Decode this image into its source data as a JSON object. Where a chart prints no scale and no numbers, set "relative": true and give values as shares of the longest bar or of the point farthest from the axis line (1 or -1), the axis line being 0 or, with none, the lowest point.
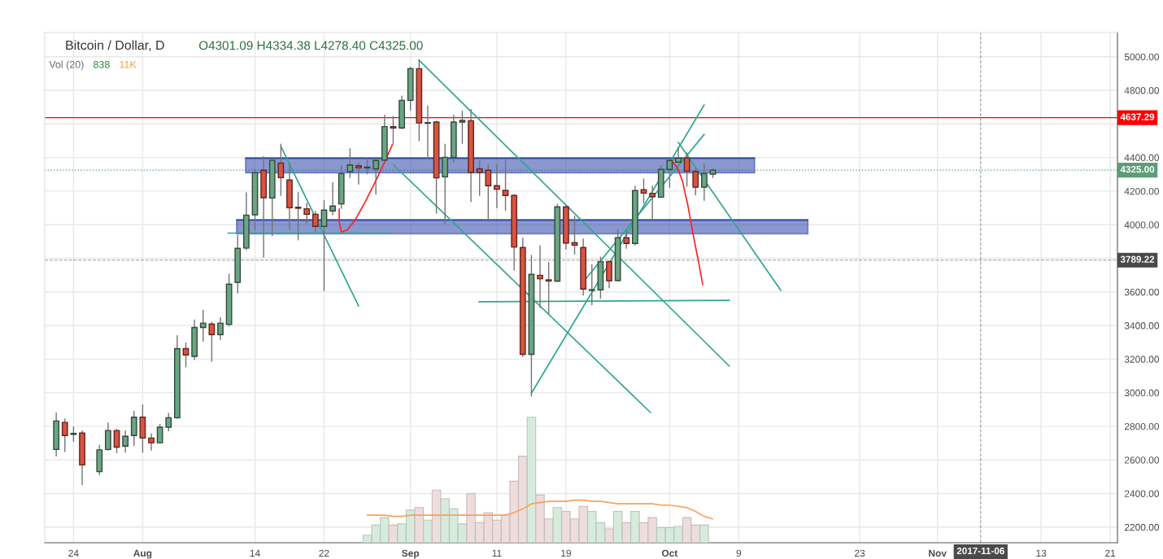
{
  "chart_data": [
    {
      "type": "candlestick",
      "title": "Bitcoin / Dollar, D",
      "subtitle": "O4301.09 H4334.38 L4278.40 C4325.00",
      "x": [
        "2017-07-22",
        "2017-07-23",
        "2017-07-24",
        "2017-07-25",
        "2017-07-27",
        "2017-07-28",
        "2017-07-29",
        "2017-07-30",
        "2017-07-31",
        "2017-08-01",
        "2017-08-02",
        "2017-08-03",
        "2017-08-04",
        "2017-08-05",
        "2017-08-06",
        "2017-08-07",
        "2017-08-08",
        "2017-08-09",
        "2017-08-10",
        "2017-08-11",
        "2017-08-12",
        "2017-08-13",
        "2017-08-14",
        "2017-08-15",
        "2017-08-16",
        "2017-08-17",
        "2017-08-18",
        "2017-08-19",
        "2017-08-20",
        "2017-08-21",
        "2017-08-22",
        "2017-08-23",
        "2017-08-24",
        "2017-08-25",
        "2017-08-26",
        "2017-08-27",
        "2017-08-28",
        "2017-08-29",
        "2017-08-30",
        "2017-08-31",
        "2017-09-01",
        "2017-09-02",
        "2017-09-03",
        "2017-09-04",
        "2017-09-05",
        "2017-09-06",
        "2017-09-07",
        "2017-09-08",
        "2017-09-09",
        "2017-09-10",
        "2017-09-11",
        "2017-09-12",
        "2017-09-13",
        "2017-09-14",
        "2017-09-15",
        "2017-09-16",
        "2017-09-17",
        "2017-09-18",
        "2017-09-19",
        "2017-09-20",
        "2017-09-21",
        "2017-09-22",
        "2017-09-23",
        "2017-09-24",
        "2017-09-25",
        "2017-09-26",
        "2017-09-27",
        "2017-09-28",
        "2017-09-29",
        "2017-09-30",
        "2017-10-01",
        "2017-10-02",
        "2017-10-03",
        "2017-10-04",
        "2017-10-05",
        "2017-10-06"
      ],
      "ohlc": [
        [
          2662,
          2882,
          2620,
          2832
        ],
        [
          2823,
          2847,
          2647,
          2745
        ],
        [
          2752,
          2799,
          2708,
          2758
        ],
        [
          2760,
          2775,
          2450,
          2570
        ],
        [
          2530,
          2690,
          2510,
          2660
        ],
        [
          2662,
          2823,
          2656,
          2775
        ],
        [
          2775,
          2786,
          2641,
          2676
        ],
        [
          2682,
          2775,
          2643,
          2740
        ],
        [
          2745,
          2892,
          2682,
          2854
        ],
        [
          2854,
          2930,
          2643,
          2730
        ],
        [
          2730,
          2758,
          2656,
          2702
        ],
        [
          2702,
          2814,
          2697,
          2795
        ],
        [
          2795,
          2879,
          2771,
          2851
        ],
        [
          2851,
          3342,
          2845,
          3262
        ],
        [
          3262,
          3299,
          3151,
          3225
        ],
        [
          3216,
          3435,
          3194,
          3388
        ],
        [
          3388,
          3494,
          3305,
          3414
        ],
        [
          3409,
          3423,
          3184,
          3346
        ],
        [
          3346,
          3449,
          3314,
          3414
        ],
        [
          3407,
          3709,
          3394,
          3646
        ],
        [
          3657,
          3939,
          3592,
          3859
        ],
        [
          3861,
          4194,
          3848,
          4057
        ],
        [
          4059,
          4333,
          3968,
          4309
        ],
        [
          4324,
          4408,
          3805,
          4161
        ],
        [
          4159,
          4404,
          3933,
          4383
        ],
        [
          4367,
          4482,
          4172,
          4280
        ],
        [
          4266,
          4369,
          3969,
          4101
        ],
        [
          4104,
          4195,
          3907,
          4098
        ],
        [
          4095,
          4130,
          4006,
          4062
        ],
        [
          4062,
          4082,
          3954,
          3990
        ],
        [
          3990,
          4146,
          3605,
          4087
        ],
        [
          4082,
          4253,
          4057,
          4111
        ],
        [
          4124,
          4353,
          4095,
          4304
        ],
        [
          4316,
          4455,
          4279,
          4356
        ],
        [
          4351,
          4372,
          4240,
          4338
        ],
        [
          4338,
          4396,
          4301,
          4343
        ],
        [
          4333,
          4404,
          4179,
          4382
        ],
        [
          4385,
          4655,
          4380,
          4584
        ],
        [
          4584,
          4648,
          4482,
          4576
        ],
        [
          4576,
          4769,
          4570,
          4740
        ],
        [
          4740,
          4939,
          4679,
          4929
        ],
        [
          4929,
          4986,
          4498,
          4606
        ],
        [
          4604,
          4708,
          4390,
          4608
        ],
        [
          4611,
          4619,
          4066,
          4279
        ],
        [
          4285,
          4482,
          4006,
          4401
        ],
        [
          4401,
          4655,
          4369,
          4611
        ],
        [
          4611,
          4679,
          4482,
          4621
        ],
        [
          4619,
          4689,
          4135,
          4312
        ],
        [
          4333,
          4385,
          4172,
          4312
        ],
        [
          4324,
          4359,
          4019,
          4232
        ],
        [
          4232,
          4359,
          4099,
          4211
        ],
        [
          4204,
          4385,
          4083,
          4174
        ],
        [
          4174,
          4183,
          3727,
          3867
        ],
        [
          3864,
          3922,
          3212,
          3228
        ],
        [
          3228,
          3820,
          2977,
          3704
        ],
        [
          3699,
          3877,
          3505,
          3678
        ],
        [
          3672,
          3777,
          3468,
          3665
        ],
        [
          3664,
          4124,
          3660,
          4106
        ],
        [
          4106,
          4114,
          3852,
          3891
        ],
        [
          3893,
          4054,
          3823,
          3878
        ],
        [
          3864,
          3917,
          3578,
          3617
        ],
        [
          3609,
          3764,
          3521,
          3613
        ],
        [
          3612,
          3810,
          3559,
          3780
        ],
        [
          3780,
          3788,
          3622,
          3667
        ],
        [
          3668,
          3973,
          3662,
          3922
        ],
        [
          3922,
          3970,
          3857,
          3888
        ],
        [
          3888,
          4232,
          3877,
          4203
        ],
        [
          4208,
          4275,
          4127,
          4188
        ],
        [
          4187,
          4232,
          4027,
          4167
        ],
        [
          4164,
          4353,
          4160,
          4329
        ],
        [
          4329,
          4385,
          4220,
          4382
        ],
        [
          4372,
          4463,
          4368,
          4396
        ],
        [
          4396,
          4430,
          4227,
          4319
        ],
        [
          4317,
          4337,
          4175,
          4224
        ],
        [
          4224,
          4364,
          4143,
          4304
        ],
        [
          4301.09,
          4334.38,
          4278.4,
          4325.0
        ]
      ],
      "colors": [
        "#6ba583",
        "#d75442",
        "#6ba583",
        "#d75442",
        "#6ba583",
        "#6ba583",
        "#d75442",
        "#6ba583",
        "#6ba583",
        "#d75442",
        "#d75442",
        "#6ba583",
        "#6ba583",
        "#6ba583",
        "#d75442",
        "#6ba583",
        "#6ba583",
        "#d75442",
        "#6ba583",
        "#6ba583",
        "#6ba583",
        "#6ba583",
        "#6ba583",
        "#d75442",
        "#6ba583",
        "#d75442",
        "#d75442",
        "#d75442",
        "#d75442",
        "#d75442",
        "#6ba583",
        "#6ba583",
        "#6ba583",
        "#6ba583",
        "#d75442",
        "#6ba583",
        "#6ba583",
        "#6ba583",
        "#d75442",
        "#6ba583",
        "#6ba583",
        "#d75442",
        "#6ba583",
        "#d75442",
        "#6ba583",
        "#6ba583",
        "#6ba583",
        "#d75442",
        "#d75442",
        "#d75442",
        "#d75442",
        "#d75442",
        "#d75442",
        "#d75442",
        "#6ba583",
        "#d75442",
        "#d75442",
        "#6ba583",
        "#d75442",
        "#d75442",
        "#d75442",
        "#6ba583",
        "#6ba583",
        "#d75442",
        "#6ba583",
        "#d75442",
        "#6ba583",
        "#d75442",
        "#d75442",
        "#6ba583",
        "#6ba583",
        "#6ba583",
        "#d75442",
        "#d75442",
        "#6ba583",
        "#6ba583"
      ],
      "series": [
        {
          "type": "line",
          "x": [
            "2017-08-12T22:00",
            "2017-08-20T12:00",
            "2017-08-31T12:00",
            "2017-09-10T12:00",
            "2017-09-20T12:00",
            "2017-09-30T12:00",
            "2017-10-10T20:00"
          ],
          "values": [
            4396,
            4396,
            4396,
            4396,
            4396,
            4396,
            4396
          ],
          "lower": [
            4309,
            4309,
            4309,
            4309,
            4309,
            4309,
            4309
          ],
          "upper": [
            4396,
            4396,
            4396,
            4396,
            4396,
            4396,
            4396
          ],
          "color": "#2a44a8"
        },
        {
          "type": "line",
          "x": [
            "2017-08-11T21:00",
            "2017-08-20T12:00",
            "2017-08-31T12:00",
            "2017-09-10T12:00",
            "2017-09-20T12:00",
            "2017-09-30T12:00",
            "2017-10-08T12:00",
            "2017-10-17T00:00"
          ],
          "values": [
            4028,
            4028,
            4028,
            4028,
            4028,
            4028,
            4028,
            4028
          ],
          "lower": [
            3946,
            3946,
            3946,
            3946,
            3946,
            3946,
            3946,
            3946
          ],
          "upper": [
            4028,
            4028,
            4028,
            4028,
            4028,
            4028,
            4028,
            4028
          ],
          "color": "#2a44a8"
        },
        {
          "type": "line",
          "x": [
            "2017-08-17",
            "2017-08-26"
          ],
          "values": [
            4466,
            3516
          ],
          "color": "#2fa58f"
        },
        {
          "type": "line",
          "x": [
            "2017-09-02",
            "2017-10-07T22:00"
          ],
          "values": [
            4979,
            3158
          ],
          "color": "#2fa58f"
        },
        {
          "type": "line",
          "x": [
            "2017-08-30",
            "2017-09-28T19:00"
          ],
          "values": [
            4358,
            2882
          ],
          "color": "#2fa58f"
        },
        {
          "type": "line",
          "x": [
            "2017-09-15",
            "2017-10-05"
          ],
          "values": [
            2997,
            4713
          ],
          "color": "#2fa58f"
        },
        {
          "type": "line",
          "x": [
            "2017-09-21T06:00",
            "2017-10-05"
          ],
          "values": [
            3675,
            4538
          ],
          "color": "#2fa58f"
        },
        {
          "type": "line",
          "x": [
            "2017-10-02",
            "2017-10-13T21:00"
          ],
          "values": [
            4490,
            3609
          ],
          "color": "#2fa58f"
        },
        {
          "type": "line",
          "x": [
            "2017-08-10T21:00",
            "2017-08-29T22:00"
          ],
          "values": [
            3950,
            3950
          ],
          "color": "#2fa58f"
        },
        {
          "type": "line",
          "x": [
            "2017-09-08T22:00",
            "2017-10-07T22:00"
          ],
          "values": [
            3541,
            3550
          ],
          "color": "#2fa58f"
        },
        {
          "type": "line",
          "x": [
            "2017-08-23T18:00",
            "2017-08-23T18:00",
            "2017-08-24T00:00",
            "2017-08-24T16:00",
            "2017-08-25T14:00",
            "2017-08-26T20:00",
            "2017-08-28T02:00",
            "2017-08-29T01:00",
            "2017-08-29T22:00"
          ],
          "values": [
            4094,
            4014,
            3957,
            3968,
            4027,
            4143,
            4272,
            4377,
            4479
          ],
          "color": "#ff2222"
        },
        {
          "type": "line",
          "x": [
            "2017-10-01T06:00",
            "2017-10-01T22:00",
            "2017-10-02T12:00",
            "2017-10-03T03:00",
            "2017-10-03T18:00",
            "2017-10-04T09:00",
            "2017-10-04T20:00"
          ],
          "values": [
            4380,
            4337,
            4256,
            4111,
            3933,
            3772,
            3643
          ],
          "color": "#ff2222"
        }
      ],
      "ref_lines": [
        {
          "axis": "y",
          "value": 4637.29,
          "label": "4637.29",
          "color": "#ff0000",
          "line_style": "solid"
        },
        {
          "axis": "y",
          "value": 4325.0,
          "label": "4325.00",
          "color": "#5d9d77",
          "line_style": "dotted"
        },
        {
          "axis": "y",
          "value": 3789.22,
          "label": "3789.22",
          "color": "#4a4a4a",
          "line_style": "dashed"
        },
        {
          "axis": "x",
          "value": "2017-11-06",
          "label": "2017-11-06",
          "color": "#4a4a4a",
          "line_style": "dashed"
        }
      ],
      "xlim": [
        "2017-07-20T16:00",
        "2017-11-21T20:00"
      ],
      "xticks": [
        {
          "value": "2017-07-24",
          "label": "24"
        },
        {
          "value": "2017-08-01",
          "label": "Aug"
        },
        {
          "value": "2017-08-14",
          "label": "14"
        },
        {
          "value": "2017-08-22",
          "label": "22"
        },
        {
          "value": "2017-09-01",
          "label": "Sep"
        },
        {
          "value": "2017-09-11",
          "label": "11"
        },
        {
          "value": "2017-09-19",
          "label": "19"
        },
        {
          "value": "2017-10-01",
          "label": "Oct"
        },
        {
          "value": "2017-10-09",
          "label": "9"
        },
        {
          "value": "2017-10-23",
          "label": "23"
        },
        {
          "value": "2017-11-01",
          "label": "Nov"
        },
        {
          "value": "2017-11-13",
          "label": "13"
        },
        {
          "value": "2017-11-21",
          "label": "21"
        }
      ],
      "ylim": [
        2107,
        5144
      ],
      "yticks": [
        {
          "value": 2200,
          "label": "2200.00"
        },
        {
          "value": 2400,
          "label": "2400.00"
        },
        {
          "value": 2600,
          "label": "2600.00"
        },
        {
          "value": 2800,
          "label": "2800.00"
        },
        {
          "value": 3000,
          "label": "3000.00"
        },
        {
          "value": 3200,
          "label": "3200.00"
        },
        {
          "value": 3400,
          "label": "3400.00"
        },
        {
          "value": 3600,
          "label": "3600.00"
        },
        {
          "value": 3800,
          "label": null
        },
        {
          "value": 4000,
          "label": "4000.00"
        },
        {
          "value": 4200,
          "label": "4200.00"
        },
        {
          "value": 4400,
          "label": "4400.00"
        },
        {
          "value": 4600,
          "label": null
        },
        {
          "value": 4800,
          "label": "4800.00"
        },
        {
          "value": 5000,
          "label": "5000.00"
        }
      ],
      "grid": true
    },
    {
      "type": "bar",
      "relative": true,
      "annotations": [
        "Vol (20)",
        "838",
        "11K"
      ],
      "xlim": [
        "2017-07-20T16:00",
        "2017-11-21T20:00"
      ],
      "x": [
        "2017-08-27",
        "2017-08-28",
        "2017-08-29",
        "2017-08-30",
        "2017-08-31",
        "2017-09-01",
        "2017-09-02",
        "2017-09-03",
        "2017-09-04",
        "2017-09-05",
        "2017-09-06",
        "2017-09-07",
        "2017-09-08",
        "2017-09-09",
        "2017-09-10",
        "2017-09-11",
        "2017-09-12",
        "2017-09-13",
        "2017-09-14",
        "2017-09-15",
        "2017-09-16",
        "2017-09-17",
        "2017-09-18",
        "2017-09-19",
        "2017-09-20",
        "2017-09-21",
        "2017-09-22",
        "2017-09-23",
        "2017-09-24",
        "2017-09-25",
        "2017-09-26",
        "2017-09-27",
        "2017-09-28",
        "2017-09-29",
        "2017-09-30",
        "2017-10-01",
        "2017-10-02",
        "2017-10-03",
        "2017-10-04",
        "2017-10-05",
        "2017-10-06"
      ],
      "series": [
        {
          "type": "bar",
          "values": [
            0.06,
            0.14,
            0.2,
            0.14,
            0.15,
            0.26,
            0.28,
            0.18,
            0.42,
            0.35,
            0.27,
            0.15,
            0.39,
            0.16,
            0.24,
            0.18,
            0.22,
            0.49,
            0.69,
            1,
            0.38,
            0.19,
            0.28,
            0.25,
            0.19,
            0.29,
            0.25,
            0.16,
            0.11,
            0.25,
            0.16,
            0.25,
            0.16,
            0.2,
            0.12,
            0.12,
            0.13,
            0.2,
            0.14,
            0.14,
            null
          ],
          "colors": [
            "#d6ebdc",
            "#d6ebdc",
            "#d6ebdc",
            "#eedddd",
            "#d6ebdc",
            "#d6ebdc",
            "#eedddd",
            "#d6ebdc",
            "#eedddd",
            "#d6ebdc",
            "#d6ebdc",
            "#d6ebdc",
            "#eedddd",
            "#eedddd",
            "#eedddd",
            "#eedddd",
            "#eedddd",
            "#eedddd",
            "#eedddd",
            "#d6ebdc",
            "#eedddd",
            "#eedddd",
            "#d6ebdc",
            "#eedddd",
            "#eedddd",
            "#eedddd",
            "#d6ebdc",
            "#d6ebdc",
            "#eedddd",
            "#d6ebdc",
            "#eedddd",
            "#d6ebdc",
            "#eedddd",
            "#eedddd",
            "#d6ebdc",
            "#d6ebdc",
            "#d6ebdc",
            "#eedddd",
            "#eedddd",
            "#d6ebdc",
            null
          ]
        },
        {
          "type": "line",
          "color": "#f7a25a",
          "values": [
            0.22,
            0.22,
            0.22,
            0.21,
            0.21,
            0.22,
            0.22,
            0.22,
            0.22,
            0.22,
            0.22,
            0.22,
            0.22,
            0.22,
            0.22,
            0.22,
            0.22,
            0.24,
            0.27,
            0.31,
            0.32,
            0.33,
            0.33,
            0.33,
            0.34,
            0.34,
            0.33,
            0.33,
            0.32,
            0.31,
            0.31,
            0.31,
            0.31,
            0.31,
            0.3,
            0.3,
            0.29,
            0.28,
            0.25,
            0.21,
            0.19
          ]
        }
      ]
    }
  ]
}
